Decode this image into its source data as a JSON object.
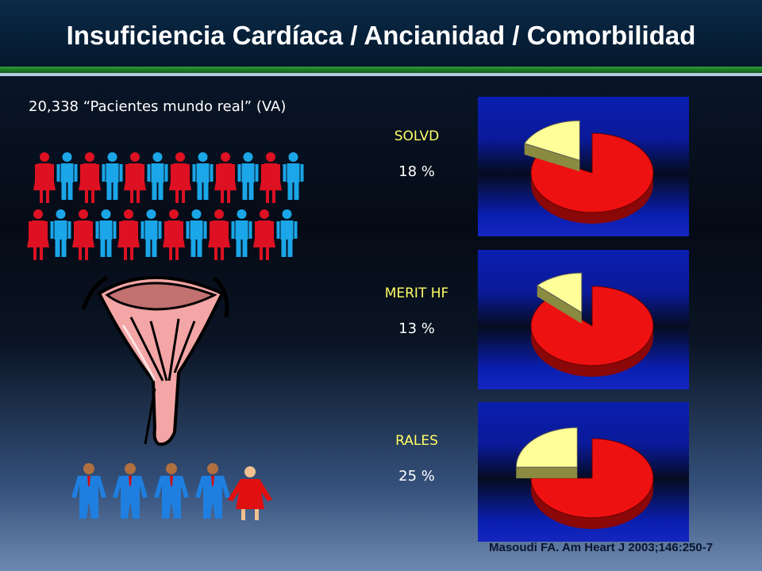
{
  "title": "Insuficiencia Cardíaca / Ancianidad / Comorbilidad",
  "subtitle": "20,338 “Pacientes mundo real” (VA)",
  "trials": [
    {
      "name": "SOLVD",
      "percent_label": "18 %",
      "fraction": 0.18
    },
    {
      "name": "MERIT HF",
      "percent_label": "13 %",
      "fraction": 0.13
    },
    {
      "name": "RALES",
      "percent_label": "25 %",
      "fraction": 0.25
    }
  ],
  "colors": {
    "pie_main": "#ee1111",
    "pie_slice": "#ffff99",
    "female": "#dd1122",
    "male": "#1aa6e8",
    "title_bar": "#04182c"
  },
  "icons": [
    "female-person-icon",
    "male-person-icon",
    "funnel-icon",
    "businessman-icon",
    "businesswoman-icon"
  ],
  "citation": "Masoudi FA. Am Heart J 2003;146:250-7"
}
